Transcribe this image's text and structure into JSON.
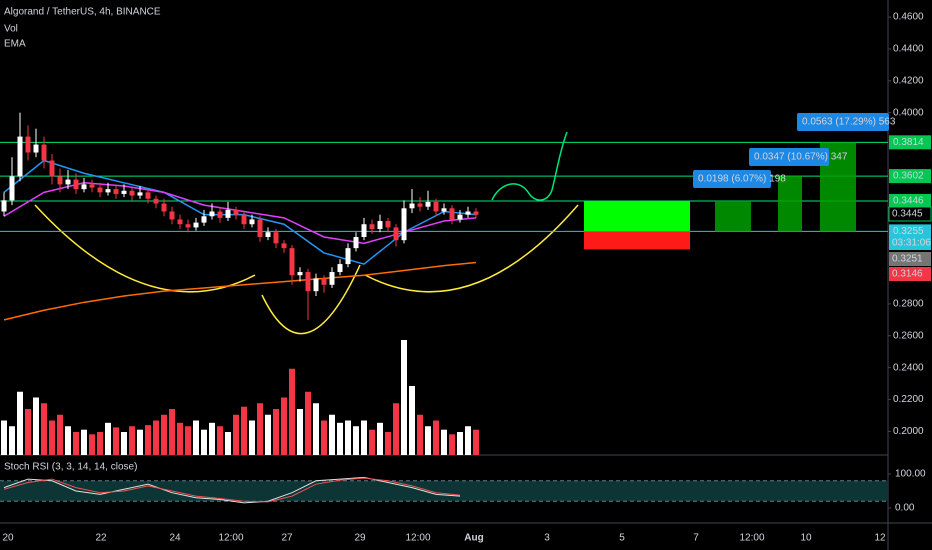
{
  "header": {
    "title": "Algorand / TetherUS, 4h, BINANCE",
    "indicators": [
      "Vol",
      "EMA"
    ]
  },
  "chart_data": {
    "type": "candlestick",
    "candles": [
      [
        0.338,
        0.35,
        0.335,
        0.345
      ],
      [
        0.345,
        0.372,
        0.342,
        0.36
      ],
      [
        0.36,
        0.4,
        0.357,
        0.385
      ],
      [
        0.385,
        0.392,
        0.37,
        0.375
      ],
      [
        0.375,
        0.39,
        0.372,
        0.38
      ],
      [
        0.38,
        0.385,
        0.365,
        0.37
      ],
      [
        0.37,
        0.374,
        0.355,
        0.36
      ],
      [
        0.36,
        0.365,
        0.35,
        0.355
      ],
      [
        0.355,
        0.364,
        0.352,
        0.358
      ],
      [
        0.358,
        0.362,
        0.349,
        0.352
      ],
      [
        0.352,
        0.359,
        0.35,
        0.355
      ],
      [
        0.355,
        0.358,
        0.35,
        0.353
      ],
      [
        0.353,
        0.356,
        0.347,
        0.35
      ],
      [
        0.35,
        0.356,
        0.348,
        0.352
      ],
      [
        0.352,
        0.354,
        0.346,
        0.349
      ],
      [
        0.349,
        0.355,
        0.347,
        0.351
      ],
      [
        0.351,
        0.353,
        0.345,
        0.348
      ],
      [
        0.348,
        0.354,
        0.346,
        0.35
      ],
      [
        0.35,
        0.352,
        0.343,
        0.346
      ],
      [
        0.346,
        0.348,
        0.34,
        0.343
      ],
      [
        0.343,
        0.346,
        0.335,
        0.338
      ],
      [
        0.338,
        0.341,
        0.33,
        0.333
      ],
      [
        0.333,
        0.336,
        0.327,
        0.33
      ],
      [
        0.33,
        0.333,
        0.325,
        0.328
      ],
      [
        0.328,
        0.334,
        0.326,
        0.331
      ],
      [
        0.331,
        0.339,
        0.329,
        0.335
      ],
      [
        0.335,
        0.343,
        0.333,
        0.338
      ],
      [
        0.338,
        0.341,
        0.331,
        0.334
      ],
      [
        0.334,
        0.344,
        0.332,
        0.339
      ],
      [
        0.339,
        0.341,
        0.333,
        0.336
      ],
      [
        0.336,
        0.338,
        0.327,
        0.33
      ],
      [
        0.33,
        0.336,
        0.328,
        0.333
      ],
      [
        0.333,
        0.335,
        0.319,
        0.322
      ],
      [
        0.322,
        0.328,
        0.32,
        0.325
      ],
      [
        0.325,
        0.327,
        0.315,
        0.318
      ],
      [
        0.318,
        0.32,
        0.312,
        0.315
      ],
      [
        0.315,
        0.317,
        0.292,
        0.298
      ],
      [
        0.298,
        0.303,
        0.294,
        0.3
      ],
      [
        0.3,
        0.302,
        0.27,
        0.288
      ],
      [
        0.288,
        0.299,
        0.285,
        0.296
      ],
      [
        0.296,
        0.298,
        0.287,
        0.292
      ],
      [
        0.292,
        0.303,
        0.29,
        0.3
      ],
      [
        0.3,
        0.308,
        0.298,
        0.305
      ],
      [
        0.305,
        0.318,
        0.303,
        0.315
      ],
      [
        0.315,
        0.325,
        0.313,
        0.322
      ],
      [
        0.322,
        0.334,
        0.32,
        0.33
      ],
      [
        0.33,
        0.333,
        0.324,
        0.327
      ],
      [
        0.327,
        0.336,
        0.325,
        0.332
      ],
      [
        0.332,
        0.334,
        0.325,
        0.328
      ],
      [
        0.328,
        0.33,
        0.316,
        0.32
      ],
      [
        0.32,
        0.345,
        0.318,
        0.34
      ],
      [
        0.34,
        0.352,
        0.337,
        0.343
      ],
      [
        0.343,
        0.347,
        0.338,
        0.341
      ],
      [
        0.341,
        0.351,
        0.339,
        0.344
      ],
      [
        0.344,
        0.346,
        0.335,
        0.338
      ],
      [
        0.338,
        0.343,
        0.336,
        0.34
      ],
      [
        0.34,
        0.342,
        0.33,
        0.333
      ],
      [
        0.333,
        0.339,
        0.331,
        0.336
      ],
      [
        0.336,
        0.341,
        0.334,
        0.338
      ],
      [
        0.338,
        0.34,
        0.334,
        0.336
      ]
    ],
    "volumes": [
      30,
      25,
      55,
      40,
      50,
      45,
      30,
      35,
      25,
      20,
      22,
      18,
      20,
      28,
      24,
      20,
      25,
      22,
      26,
      30,
      35,
      40,
      28,
      25,
      30,
      22,
      28,
      25,
      20,
      35,
      42,
      30,
      45,
      35,
      40,
      50,
      75,
      40,
      55,
      45,
      30,
      35,
      28,
      30,
      25,
      30,
      22,
      28,
      20,
      45,
      100,
      60,
      35,
      25,
      30,
      22,
      18,
      20,
      25,
      22
    ],
    "vlim": [
      0,
      100
    ],
    "ylim": [
      0.1852,
      0.4707
    ],
    "yticks": [
      {
        "value": 0.46,
        "label": "0.4600"
      },
      {
        "value": 0.44,
        "label": "0.4400"
      },
      {
        "value": 0.42,
        "label": "0.4200"
      },
      {
        "value": 0.4,
        "label": "0.4000"
      },
      {
        "value": 0.28,
        "label": "0.2800"
      },
      {
        "value": 0.26,
        "label": "0.2600"
      },
      {
        "value": 0.24,
        "label": "0.2400"
      },
      {
        "value": 0.22,
        "label": "0.2200"
      },
      {
        "value": 0.2,
        "label": "0.2000"
      }
    ],
    "ema": {
      "x": [
        0,
        5,
        10,
        15,
        20,
        25,
        30,
        35,
        40,
        45,
        50,
        55,
        59
      ],
      "series": [
        {
          "color": "#2196f3",
          "values": [
            0.35,
            0.37,
            0.362,
            0.356,
            0.35,
            0.336,
            0.336,
            0.33,
            0.312,
            0.305,
            0.325,
            0.338,
            0.336
          ]
        },
        {
          "color": "#e040fb",
          "values": [
            0.335,
            0.35,
            0.356,
            0.354,
            0.35,
            0.342,
            0.338,
            0.334,
            0.322,
            0.318,
            0.325,
            0.332,
            0.334
          ]
        },
        {
          "color": "#ff6d00",
          "values": [
            0.27,
            0.276,
            0.281,
            0.285,
            0.288,
            0.29,
            0.292,
            0.294,
            0.296,
            0.298,
            0.301,
            0.304,
            0.306
          ]
        }
      ]
    },
    "levels": [
      {
        "value": 0.3814,
        "label": "0.3814",
        "color": "#00e676"
      },
      {
        "value": 0.3602,
        "label": "0.3602",
        "color": "#00e676"
      },
      {
        "value": 0.3446,
        "label": "0.3446",
        "color": "#00e676"
      },
      {
        "value": 0.3255,
        "label": "0.3255",
        "color": "#26c6da"
      }
    ],
    "price_labels": [
      {
        "value": 0.3445,
        "label": "0.3445",
        "color": "#000000"
      },
      {
        "value": 0.3255,
        "label": "03:31:06",
        "color": "#26c6da"
      },
      {
        "value": 0.3251,
        "label": "0.3251",
        "color": "#757575"
      },
      {
        "value": 0.3146,
        "label": "0.3146",
        "color": "#f23645"
      }
    ],
    "measurements": [
      "0.0198 (6.07%) 198",
      "0.0347 (10.67%) 347",
      "0.0563 (17.29%) 563"
    ],
    "time_labels": [
      "20",
      "22",
      "24",
      "12:00",
      "27",
      "29",
      "12:00",
      "Aug",
      "3",
      "5",
      "7",
      "12:00",
      "10",
      "12"
    ]
  },
  "stoch": {
    "title": "Stoch RSI (3, 3, 14, 14, close)",
    "ylim": [
      -44.1,
      152.9
    ],
    "yticks": [
      {
        "value": 100,
        "label": "100.00"
      },
      {
        "value": 0,
        "label": "0.00"
      }
    ],
    "band": [
      20,
      80
    ],
    "x": [
      0,
      3,
      6,
      9,
      12,
      15,
      18,
      21,
      24,
      27,
      30,
      33,
      36,
      39,
      42,
      45,
      48,
      51,
      54,
      57
    ],
    "k": [
      60,
      85,
      80,
      50,
      40,
      55,
      70,
      45,
      30,
      25,
      15,
      20,
      45,
      80,
      85,
      90,
      75,
      60,
      40,
      35
    ],
    "d": [
      55,
      75,
      85,
      60,
      45,
      50,
      65,
      50,
      35,
      28,
      20,
      18,
      35,
      70,
      82,
      88,
      80,
      65,
      45,
      38
    ]
  }
}
